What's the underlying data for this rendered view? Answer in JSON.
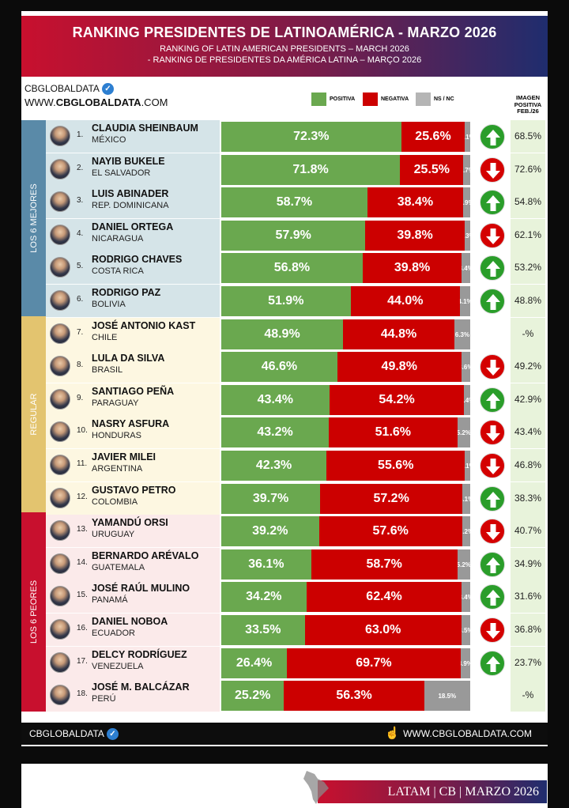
{
  "header": {
    "title": "RANKING PRESIDENTES DE LATINOAMÉRICA - MARZO 2026",
    "subtitle_en": "RANKING OF LATIN AMERICAN PRESIDENTS – MARCH 2026",
    "subtitle_pt": "- RANKING DE PRESIDENTES DA AMÉRICA LATINA – MARÇO 2026"
  },
  "brand": {
    "name": "CBGLOBALDATA",
    "url_prefix": "WWW.",
    "url_domain": "CBGLOBALDATA",
    "url_suffix": ".COM"
  },
  "legend": {
    "positive": "POSITIVA",
    "negative": "NEGATIVA",
    "ns": "NS / NC"
  },
  "image_header": [
    "IMAGEN",
    "POSITIVA",
    "FEB./26"
  ],
  "groups": [
    "LOS 6 MEJORES",
    "REGULAR",
    "LOS 6 PEORES"
  ],
  "footer": {
    "left": "CBGLOBALDATA",
    "right": "WWW.CBGLOBALDATA.COM",
    "badge": "LATAM | CB | MARZO 2026"
  },
  "colors": {
    "positive": "#6aa84f",
    "negative": "#cc0000",
    "ns": "#999999",
    "trend_up": "#2a9d2a",
    "trend_down": "#d40000",
    "group_best": "#5a8aa8",
    "group_regular": "#e3c46f",
    "group_worst": "#c8102e"
  },
  "chart_data": {
    "type": "bar",
    "stacked": true,
    "orientation": "horizontal",
    "title": "RANKING PRESIDENTES DE LATINOAMÉRICA - MARZO 2026",
    "series_names": [
      "POSITIVA",
      "NEGATIVA",
      "NS / NC"
    ],
    "rows": [
      {
        "rank": "1.",
        "name": "CLAUDIA SHEINBAUM",
        "country": "MÉXICO",
        "group": 0,
        "positive": 72.3,
        "negative": 25.6,
        "ns": 2.1,
        "trend": "up",
        "feb": "68.5%"
      },
      {
        "rank": "2.",
        "name": "NAYIB BUKELE",
        "country": "EL SALVADOR",
        "group": 0,
        "positive": 71.8,
        "negative": 25.5,
        "ns": 2.7,
        "trend": "down",
        "feb": "72.6%"
      },
      {
        "rank": "3.",
        "name": "LUIS ABINADER",
        "country": "REP. DOMINICANA",
        "group": 0,
        "positive": 58.7,
        "negative": 38.4,
        "ns": 2.9,
        "trend": "up",
        "feb": "54.8%"
      },
      {
        "rank": "4.",
        "name": "DANIEL ORTEGA",
        "country": "NICARAGUA",
        "group": 0,
        "positive": 57.9,
        "negative": 39.8,
        "ns": 2.3,
        "trend": "down",
        "feb": "62.1%"
      },
      {
        "rank": "5.",
        "name": "RODRIGO CHAVES",
        "country": "COSTA RICA",
        "group": 0,
        "positive": 56.8,
        "negative": 39.8,
        "ns": 3.4,
        "trend": "up",
        "feb": "53.2%"
      },
      {
        "rank": "6.",
        "name": "RODRIGO PAZ",
        "country": "BOLIVIA",
        "group": 0,
        "positive": 51.9,
        "negative": 44.0,
        "ns": 4.1,
        "trend": "up",
        "feb": "48.8%"
      },
      {
        "rank": "7.",
        "name": "JOSÉ ANTONIO KAST",
        "country": "CHILE",
        "group": 1,
        "positive": 48.9,
        "negative": 44.8,
        "ns": 6.3,
        "trend": "none",
        "feb": "-%"
      },
      {
        "rank": "8.",
        "name": "LULA DA SILVA",
        "country": "BRASIL",
        "group": 1,
        "positive": 46.6,
        "negative": 49.8,
        "ns": 3.6,
        "trend": "down",
        "feb": "49.2%"
      },
      {
        "rank": "9.",
        "name": "SANTIAGO PEÑA",
        "country": "PARAGUAY",
        "group": 1,
        "positive": 43.4,
        "negative": 54.2,
        "ns": 2.4,
        "trend": "up",
        "feb": "42.9%"
      },
      {
        "rank": "10.",
        "name": "NASRY ASFURA",
        "country": "HONDURAS",
        "group": 1,
        "positive": 43.2,
        "negative": 51.6,
        "ns": 5.2,
        "trend": "down",
        "feb": "43.4%"
      },
      {
        "rank": "11.",
        "name": "JAVIER MILEI",
        "country": "ARGENTINA",
        "group": 1,
        "positive": 42.3,
        "negative": 55.6,
        "ns": 2.1,
        "trend": "down",
        "feb": "46.8%"
      },
      {
        "rank": "12.",
        "name": "GUSTAVO PETRO",
        "country": "COLOMBIA",
        "group": 1,
        "positive": 39.7,
        "negative": 57.2,
        "ns": 3.1,
        "trend": "up",
        "feb": "38.3%"
      },
      {
        "rank": "13.",
        "name": "YAMANDÚ ORSI",
        "country": "URUGUAY",
        "group": 2,
        "positive": 39.2,
        "negative": 57.6,
        "ns": 3.2,
        "trend": "down",
        "feb": "40.7%"
      },
      {
        "rank": "14.",
        "name": "BERNARDO ARÉVALO",
        "country": "GUATEMALA",
        "group": 2,
        "positive": 36.1,
        "negative": 58.7,
        "ns": 5.2,
        "trend": "up",
        "feb": "34.9%"
      },
      {
        "rank": "15.",
        "name": "JOSÉ RAÚL MULINO",
        "country": "PANAMÁ",
        "group": 2,
        "positive": 34.2,
        "negative": 62.4,
        "ns": 3.4,
        "trend": "up",
        "feb": "31.6%"
      },
      {
        "rank": "16.",
        "name": "DANIEL NOBOA",
        "country": "ECUADOR",
        "group": 2,
        "positive": 33.5,
        "negative": 63.0,
        "ns": 3.5,
        "trend": "down",
        "feb": "36.8%"
      },
      {
        "rank": "17.",
        "name": "DELCY RODRÍGUEZ",
        "country": "VENEZUELA",
        "group": 2,
        "positive": 26.4,
        "negative": 69.7,
        "ns": 3.9,
        "trend": "up",
        "feb": "23.7%"
      },
      {
        "rank": "18.",
        "name": "JOSÉ M. BALCÁZAR",
        "country": "PERÚ",
        "group": 2,
        "positive": 25.2,
        "negative": 56.3,
        "ns": 18.5,
        "trend": "none",
        "feb": "-%"
      }
    ]
  }
}
